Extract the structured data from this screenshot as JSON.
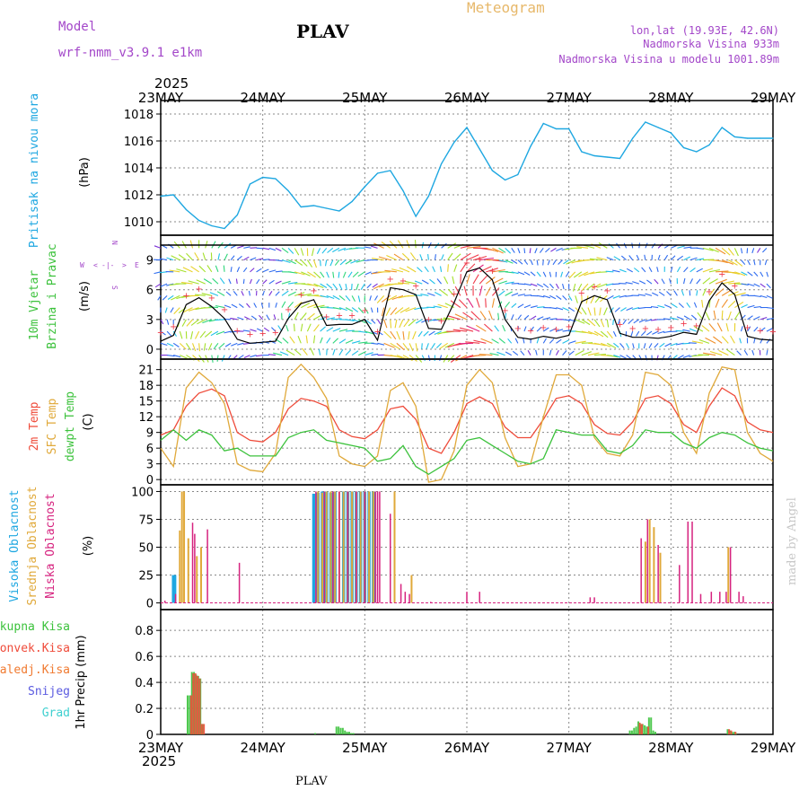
{
  "header": {
    "model_label": "Model",
    "model_name": "wrf-nmm_v3.9.1  e1km",
    "station": "PLAV",
    "title": "Meteogram",
    "coords": "lon,lat (19.93E, 42.6N)",
    "elevation": "Nadmorska Visina 933m",
    "model_elevation": "Nadmorska Visina u modelu 1001.89m"
  },
  "footer": {
    "station": "PLAV",
    "credit": "made by Angel"
  },
  "colors": {
    "pressure": "#1ea7e1",
    "wind_black": "#000000",
    "temp2m": "#ef4b3a",
    "sfc": "#e0a93a",
    "dew": "#3cc23c",
    "cloud_high": "#1ea7e1",
    "cloud_mid": "#e0a93a",
    "cloud_low": "#d6237f",
    "precip_total": "#3cc23c",
    "precip_conv": "#ef4b3a",
    "precip_frz": "#f07a30",
    "snow": "#5a5ae0",
    "grad": "#3fd0d0",
    "label_purple": "#a347c9",
    "orange_title": "#e7b86a"
  },
  "x_axis": {
    "year": "2025",
    "days": [
      "23MAY",
      "24MAY",
      "25MAY",
      "26MAY",
      "27MAY",
      "28MAY",
      "29MAY"
    ]
  },
  "panels": {
    "pressure": {
      "labels": [
        "Pritisak na nivou mora"
      ],
      "unit": "(hPa)",
      "ticks": [
        "1010",
        "1012",
        "1014",
        "1016",
        "1018"
      ]
    },
    "wind": {
      "labels": [
        "10m Vjetar",
        "Brzina i Pravac"
      ],
      "unit": "(m/s)",
      "ticks": [
        "0",
        "3",
        "6",
        "9"
      ],
      "compass": {
        "n": "N",
        "s": "S",
        "w": "W",
        "e": "E",
        "arrow_w": "<",
        "arrow_e": ">",
        "bar": "-|-"
      }
    },
    "temp": {
      "labels": [
        "2m Temp",
        "SFC Temp",
        "dewpt Temp"
      ],
      "unit": "(C)",
      "ticks": [
        "0",
        "3",
        "6",
        "9",
        "12",
        "15",
        "18",
        "21"
      ]
    },
    "cloud": {
      "labels": [
        "Visoka Oblacnost",
        "Srednja Oblacnost",
        "Niska Oblacnost"
      ],
      "unit": "(%)",
      "ticks": [
        "0",
        "25",
        "50",
        "75",
        "100"
      ]
    },
    "precip": {
      "labels": [
        "Ukupna Kisa",
        "Konvek.Kisa",
        "Zaledj.Kisa",
        "Snijeg",
        "Grad"
      ],
      "unit": "1hr Precip (mm)",
      "ticks": [
        "0",
        "0.2",
        "0.4",
        "0.6",
        "0.8"
      ]
    }
  },
  "chart_data": [
    {
      "type": "line",
      "name": "pressure",
      "ylim": [
        1009,
        1019
      ],
      "x_unit": "hours since 23MAY 00UTC",
      "x": [
        0,
        3,
        6,
        9,
        12,
        15,
        18,
        21,
        24,
        27,
        30,
        33,
        36,
        39,
        42,
        45,
        48,
        51,
        54,
        57,
        60,
        63,
        66,
        69,
        72,
        75,
        78,
        81,
        84,
        87,
        90,
        93,
        96,
        99,
        102,
        105,
        108,
        111,
        114,
        117,
        120,
        123,
        126,
        129,
        132,
        135,
        138,
        141,
        144
      ],
      "y": [
        1011.9,
        1012.0,
        1010.9,
        1010.1,
        1009.7,
        1009.5,
        1010.5,
        1012.8,
        1013.3,
        1013.2,
        1012.3,
        1011.1,
        1011.2,
        1011.0,
        1010.8,
        1011.5,
        1012.6,
        1013.6,
        1013.8,
        1012.3,
        1010.4,
        1011.9,
        1014.3,
        1015.9,
        1017.0,
        1015.4,
        1013.8,
        1013.1,
        1013.5,
        1015.6,
        1017.3,
        1016.9,
        1016.9,
        1015.2,
        1014.9,
        1014.8,
        1014.7,
        1016.2,
        1017.4,
        1017.0,
        1016.6,
        1015.5,
        1015.2,
        1015.7,
        1017.0,
        1016.3,
        1016.2,
        1016.2,
        1016.2
      ]
    },
    {
      "type": "line",
      "name": "wind speed",
      "ylim": [
        -1,
        11.5
      ],
      "x": [
        0,
        3,
        6,
        9,
        12,
        15,
        18,
        21,
        24,
        27,
        30,
        33,
        36,
        39,
        42,
        45,
        48,
        51,
        54,
        57,
        60,
        63,
        66,
        69,
        72,
        75,
        78,
        81,
        84,
        87,
        90,
        93,
        96,
        99,
        102,
        105,
        108,
        111,
        114,
        117,
        120,
        123,
        126,
        129,
        132,
        135,
        138,
        141,
        144
      ],
      "y": [
        0.8,
        1.4,
        4.5,
        5.2,
        4.3,
        3.1,
        1.0,
        0.6,
        0.7,
        0.8,
        3.1,
        4.6,
        5.0,
        2.4,
        2.5,
        2.5,
        3.0,
        0.9,
        6.2,
        6.0,
        5.5,
        2.1,
        2.0,
        4.7,
        7.8,
        8.2,
        7.0,
        3.0,
        1.2,
        1.0,
        1.3,
        1.1,
        1.4,
        4.8,
        5.4,
        5.0,
        1.6,
        1.2,
        1.2,
        1.1,
        1.3,
        1.7,
        1.5,
        4.9,
        6.7,
        5.5,
        1.3,
        1.0,
        0.9
      ]
    },
    {
      "type": "line",
      "x": [
        0,
        3,
        6,
        9,
        12,
        15,
        18,
        21,
        24,
        27,
        30,
        33,
        36,
        39,
        42,
        45,
        48,
        51,
        54,
        57,
        60,
        63,
        66,
        69,
        72,
        75,
        78,
        81,
        84,
        87,
        90,
        93,
        96,
        99,
        102,
        105,
        108,
        111,
        114,
        117,
        120,
        123,
        126,
        129,
        132,
        135,
        138,
        141,
        144
      ],
      "ylim": [
        -1,
        23
      ],
      "series": [
        {
          "name": "2m Temp",
          "values": [
            8.5,
            9.5,
            14.0,
            16.5,
            17.3,
            16.0,
            9.0,
            7.5,
            7.2,
            9.0,
            13.5,
            15.5,
            15.0,
            14.0,
            9.5,
            8.2,
            7.8,
            9.5,
            13.5,
            14.0,
            11.5,
            6.0,
            5.0,
            9.0,
            14.5,
            15.8,
            14.5,
            10.0,
            8.0,
            8.0,
            11.5,
            15.5,
            16.0,
            14.5,
            10.5,
            8.8,
            8.5,
            11.0,
            15.5,
            16.0,
            14.5,
            10.5,
            9.0,
            14.0,
            17.5,
            16.0,
            11.0,
            9.5,
            9.0
          ]
        },
        {
          "name": "SFC Temp",
          "values": [
            6.0,
            2.5,
            17.5,
            20.5,
            18.5,
            14.5,
            3.0,
            1.8,
            1.5,
            5.0,
            19.5,
            22.0,
            19.5,
            15.5,
            4.5,
            3.0,
            2.5,
            4.5,
            17.0,
            18.5,
            14.0,
            -0.5,
            0.0,
            5.5,
            18.0,
            21.0,
            18.5,
            8.0,
            2.5,
            3.0,
            12.0,
            20.0,
            20.0,
            18.0,
            8.0,
            5.0,
            4.5,
            8.5,
            20.5,
            20.0,
            18.0,
            9.0,
            5.0,
            16.5,
            21.5,
            21.0,
            9.0,
            5.0,
            3.5
          ]
        },
        {
          "name": "dewpt Temp",
          "values": [
            7.5,
            9.5,
            7.5,
            9.5,
            8.5,
            5.5,
            6.0,
            4.5,
            4.5,
            4.5,
            8.0,
            9.0,
            9.5,
            7.5,
            7.0,
            6.5,
            6.0,
            3.5,
            4.0,
            6.5,
            2.5,
            1.0,
            2.5,
            4.0,
            7.5,
            8.0,
            6.5,
            5.0,
            3.5,
            3.0,
            4.0,
            9.5,
            9.0,
            8.5,
            8.5,
            5.5,
            5.0,
            6.5,
            9.5,
            9.0,
            9.0,
            7.0,
            6.0,
            8.0,
            9.0,
            8.5,
            7.0,
            6.0,
            5.5
          ]
        }
      ]
    },
    {
      "type": "bar",
      "name": "cloud cover",
      "ylim": [
        -6,
        106
      ],
      "series": [
        {
          "name": "Visoka Oblacnost",
          "x": [
            3,
            3.3,
            36,
            37,
            38,
            39,
            40,
            41,
            43,
            44,
            45,
            46,
            47,
            48,
            49,
            50
          ],
          "values": [
            25,
            25,
            98,
            99,
            100,
            100,
            99,
            100,
            100,
            100,
            100,
            100,
            100,
            100,
            100,
            100
          ]
        },
        {
          "name": "Srednja Oblacnost",
          "x": [
            4.5,
            5,
            5.5,
            6.5,
            8.5,
            9.5,
            37,
            38,
            39,
            40,
            41,
            42,
            43,
            44,
            45,
            46,
            47,
            48,
            49,
            50,
            55,
            59,
            114,
            115,
            116,
            117.5,
            133.5
          ],
          "values": [
            65,
            100,
            100,
            58,
            42,
            50,
            100,
            99,
            100,
            100,
            100,
            100,
            100,
            100,
            100,
            100,
            100,
            100,
            100,
            100,
            100,
            25,
            55,
            75,
            68,
            45,
            50
          ]
        },
        {
          "name": "Niska Oblacnost",
          "x": [
            1,
            3.5,
            7.5,
            8,
            11,
            18.5,
            36.5,
            38.5,
            40.5,
            42,
            44,
            46,
            48,
            50.5,
            51,
            51.5,
            54,
            56.5,
            57.5,
            58.5,
            63.5,
            72,
            75,
            101,
            102,
            113,
            114.5,
            117,
            122,
            124,
            125,
            127,
            129.5,
            131.5,
            133,
            134,
            136,
            137
          ],
          "values": [
            2,
            8,
            72,
            62,
            66,
            36,
            100,
            100,
            100,
            100,
            100,
            100,
            100,
            100,
            100,
            100,
            80,
            17,
            10,
            8,
            1,
            10,
            10,
            5,
            5,
            58,
            75,
            52,
            34,
            73,
            73,
            8,
            10,
            10,
            10,
            50,
            10,
            6
          ]
        }
      ]
    },
    {
      "type": "bar",
      "name": "1hr precip",
      "ylim": [
        0,
        0.96
      ],
      "series": [
        {
          "name": "Ukupna Kisa",
          "x": [
            6.5,
            7,
            7.5,
            8,
            8.5,
            9,
            9.5,
            10,
            36.5,
            41.5,
            42,
            42.5,
            43,
            43.5,
            44,
            44.5,
            45,
            45.5,
            110.5,
            111,
            111.5,
            112,
            112.5,
            113,
            113.5,
            114,
            114.5,
            115,
            115.5,
            116,
            116.5,
            133.5,
            134,
            134.5,
            135,
            135.5
          ],
          "values": [
            0.3,
            0.3,
            0.48,
            0.48,
            0.46,
            0.45,
            0.43,
            0.08,
            0.01,
            0.06,
            0.06,
            0.05,
            0.05,
            0.03,
            0.02,
            0.02,
            0.01,
            0.01,
            0.03,
            0.03,
            0.05,
            0.06,
            0.1,
            0.08,
            0.08,
            0.07,
            0.06,
            0.13,
            0.13,
            0.03,
            0.02,
            0.04,
            0.03,
            0.02,
            0.02,
            0.01
          ]
        },
        {
          "name": "Konvek.Kisa",
          "x": [
            7,
            7.5,
            8,
            8.5,
            9,
            9.5,
            10,
            112.5,
            113,
            114.5,
            133.5,
            134,
            135
          ],
          "values": [
            0.3,
            0.47,
            0.47,
            0.45,
            0.43,
            0.08,
            0.08,
            0.09,
            0.08,
            0.06,
            0.04,
            0.03,
            0.02
          ]
        }
      ]
    }
  ]
}
